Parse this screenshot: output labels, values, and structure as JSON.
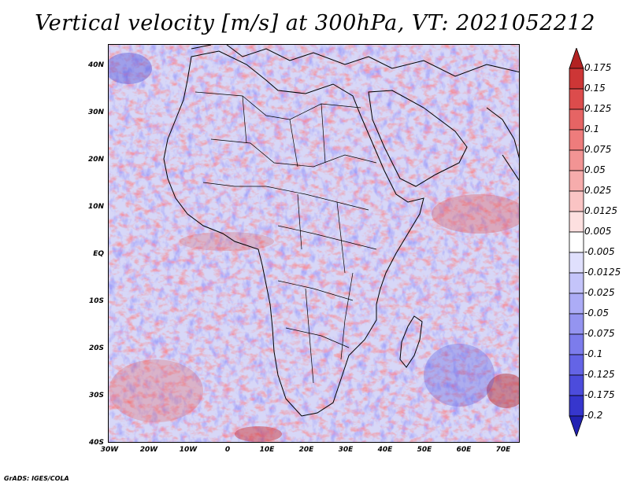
{
  "title": "Vertical velocity [m/s] at 300hPa, VT: 2021052212",
  "footer": "GrADS: IGES/COLA",
  "map": {
    "lat_labels": [
      "40N",
      "30N",
      "20N",
      "10N",
      "EQ",
      "10S",
      "20S",
      "30S",
      "40S"
    ],
    "lon_labels": [
      "30W",
      "20W",
      "10W",
      "0",
      "10E",
      "20E",
      "30E",
      "40E",
      "50E",
      "60E",
      "70E"
    ],
    "background_color": "#d7d7f7",
    "coast_color": "#000000"
  },
  "colorbar": {
    "labels": [
      "0.175",
      "0.15",
      "0.125",
      "0.1",
      "0.075",
      "0.05",
      "0.025",
      "0.0125",
      "0.005",
      "-0.005",
      "-0.0125",
      "-0.025",
      "-0.05",
      "-0.075",
      "-0.1",
      "-0.125",
      "-0.175",
      "-0.2"
    ],
    "colors": [
      "#b22222",
      "#cd3636",
      "#dc4c4c",
      "#e66464",
      "#ee7c7c",
      "#f29494",
      "#f6acac",
      "#fac4c4",
      "#fde0e0",
      "#ffffff",
      "#e0e0fd",
      "#c4c4fa",
      "#acacf6",
      "#9494f0",
      "#7c7cec",
      "#6464e6",
      "#4c4cdc",
      "#3636cd",
      "#2222b2"
    ]
  }
}
